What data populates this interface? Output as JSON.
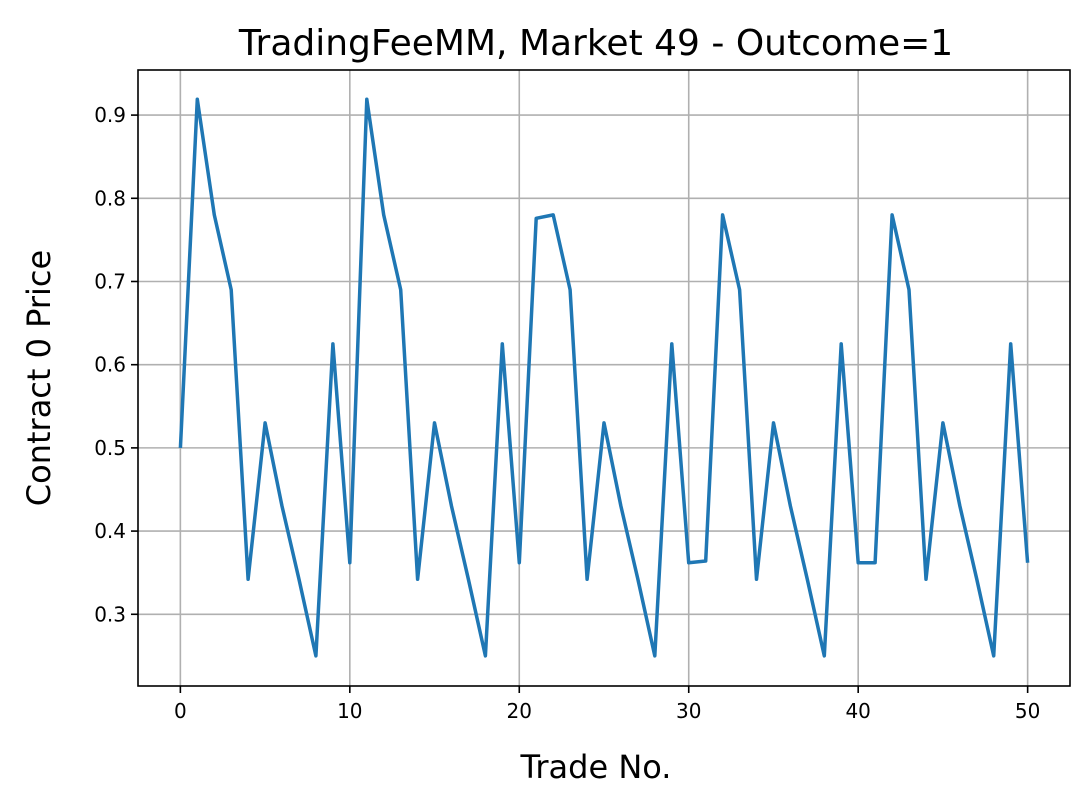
{
  "chart_data": {
    "type": "line",
    "title": "TradingFeeMM, Market 49 - Outcome=1",
    "xlabel": "Trade No.",
    "ylabel": "Contract 0 Price",
    "xlim": [
      -2.5,
      52.5
    ],
    "ylim": [
      0.2138,
      0.9542
    ],
    "xticks": [
      0,
      10,
      20,
      30,
      40,
      50
    ],
    "xtick_labels": [
      "0",
      "10",
      "20",
      "30",
      "40",
      "50"
    ],
    "yticks": [
      0.3,
      0.4,
      0.5,
      0.6,
      0.7,
      0.8,
      0.9
    ],
    "ytick_labels": [
      "0.3",
      "0.4",
      "0.5",
      "0.6",
      "0.7",
      "0.8",
      "0.9"
    ],
    "grid": true,
    "series": [
      {
        "color": "#1f77b4",
        "x": [
          0,
          1,
          2,
          3,
          4,
          5,
          6,
          7,
          8,
          9,
          10,
          11,
          12,
          13,
          14,
          15,
          16,
          17,
          18,
          19,
          20,
          21,
          22,
          23,
          24,
          25,
          26,
          27,
          28,
          29,
          30,
          31,
          32,
          33,
          34,
          35,
          36,
          37,
          38,
          39,
          40,
          41,
          42,
          43,
          44,
          45,
          46,
          47,
          48,
          49,
          50
        ],
        "y": [
          0.5,
          0.919,
          0.78,
          0.69,
          0.342,
          0.53,
          0.43,
          0.342,
          0.25,
          0.625,
          0.362,
          0.919,
          0.78,
          0.69,
          0.342,
          0.53,
          0.43,
          0.342,
          0.25,
          0.625,
          0.362,
          0.776,
          0.78,
          0.69,
          0.342,
          0.53,
          0.43,
          0.342,
          0.25,
          0.625,
          0.362,
          0.364,
          0.78,
          0.69,
          0.342,
          0.53,
          0.43,
          0.342,
          0.25,
          0.625,
          0.362,
          0.362,
          0.78,
          0.69,
          0.342,
          0.53,
          0.43,
          0.342,
          0.25,
          0.625,
          0.362
        ]
      }
    ]
  }
}
